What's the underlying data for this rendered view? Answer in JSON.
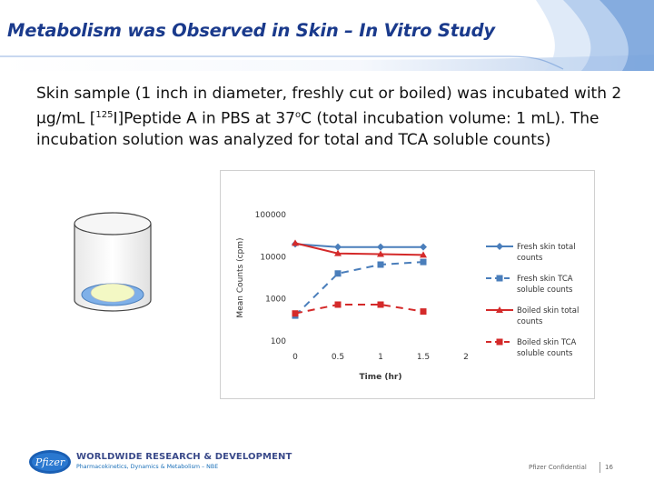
{
  "slide": {
    "title": "Metabolism was Observed in Skin – In Vitro Study",
    "body_part1": "Skin sample (1 inch in diameter, freshly cut or boiled) was incubated with 2 μg/mL [",
    "body_sup": "125",
    "body_part2": "I]Peptide A in PBS at 37",
    "body_deg": "o",
    "body_part3": "C (total incubation volume: 1 mL). The incubation solution was analyzed for total and TCA soluble counts)"
  },
  "footer": {
    "company": "WORLDWIDE RESEARCH & DEVELOPMENT",
    "division": "Pharmacokinetics, Dynamics & Metabolism – NBE",
    "confidential": "Pfizer Confidential",
    "page": "16"
  },
  "colors": {
    "title": "#1a3a8c",
    "fresh": "#4a7ebb",
    "boiled": "#d42a2a"
  },
  "chart_data": {
    "type": "line",
    "title": "",
    "xlabel": "Time (hr)",
    "ylabel": "Mean Counts (cpm)",
    "yscale": "log",
    "ylim": [
      100,
      100000
    ],
    "xlim": [
      0,
      2
    ],
    "x_ticks": [
      "0",
      "0.5",
      "1",
      "1.5",
      "2"
    ],
    "y_ticks": [
      "100",
      "1000",
      "10000",
      "100000"
    ],
    "legend_position": "right",
    "series": [
      {
        "name": "Fresh skin total counts",
        "name_lines": [
          "Fresh skin total",
          "counts"
        ],
        "color": "#4a7ebb",
        "marker": "diamond",
        "dash": false,
        "x": [
          0,
          0.5,
          1,
          1.5
        ],
        "y": [
          20000,
          17000,
          17000,
          17000
        ]
      },
      {
        "name": "Fresh skin TCA soluble counts",
        "name_lines": [
          "Fresh skin TCA",
          "soluble counts"
        ],
        "color": "#4a7ebb",
        "marker": "square",
        "dash": true,
        "x": [
          0,
          0.5,
          1,
          1.5
        ],
        "y": [
          400,
          4000,
          6500,
          7500
        ]
      },
      {
        "name": "Boiled skin total counts",
        "name_lines": [
          "Boiled skin total",
          "counts"
        ],
        "color": "#d42a2a",
        "marker": "triangle",
        "dash": false,
        "x": [
          0,
          0.5,
          1,
          1.5
        ],
        "y": [
          21000,
          12000,
          11500,
          11000
        ]
      },
      {
        "name": "Boiled skin TCA soluble counts",
        "name_lines": [
          "Boiled skin TCA",
          "soluble counts"
        ],
        "color": "#d42a2a",
        "marker": "square",
        "dash": true,
        "x": [
          0,
          0.5,
          1,
          1.5
        ],
        "y": [
          450,
          730,
          730,
          500
        ]
      }
    ]
  }
}
